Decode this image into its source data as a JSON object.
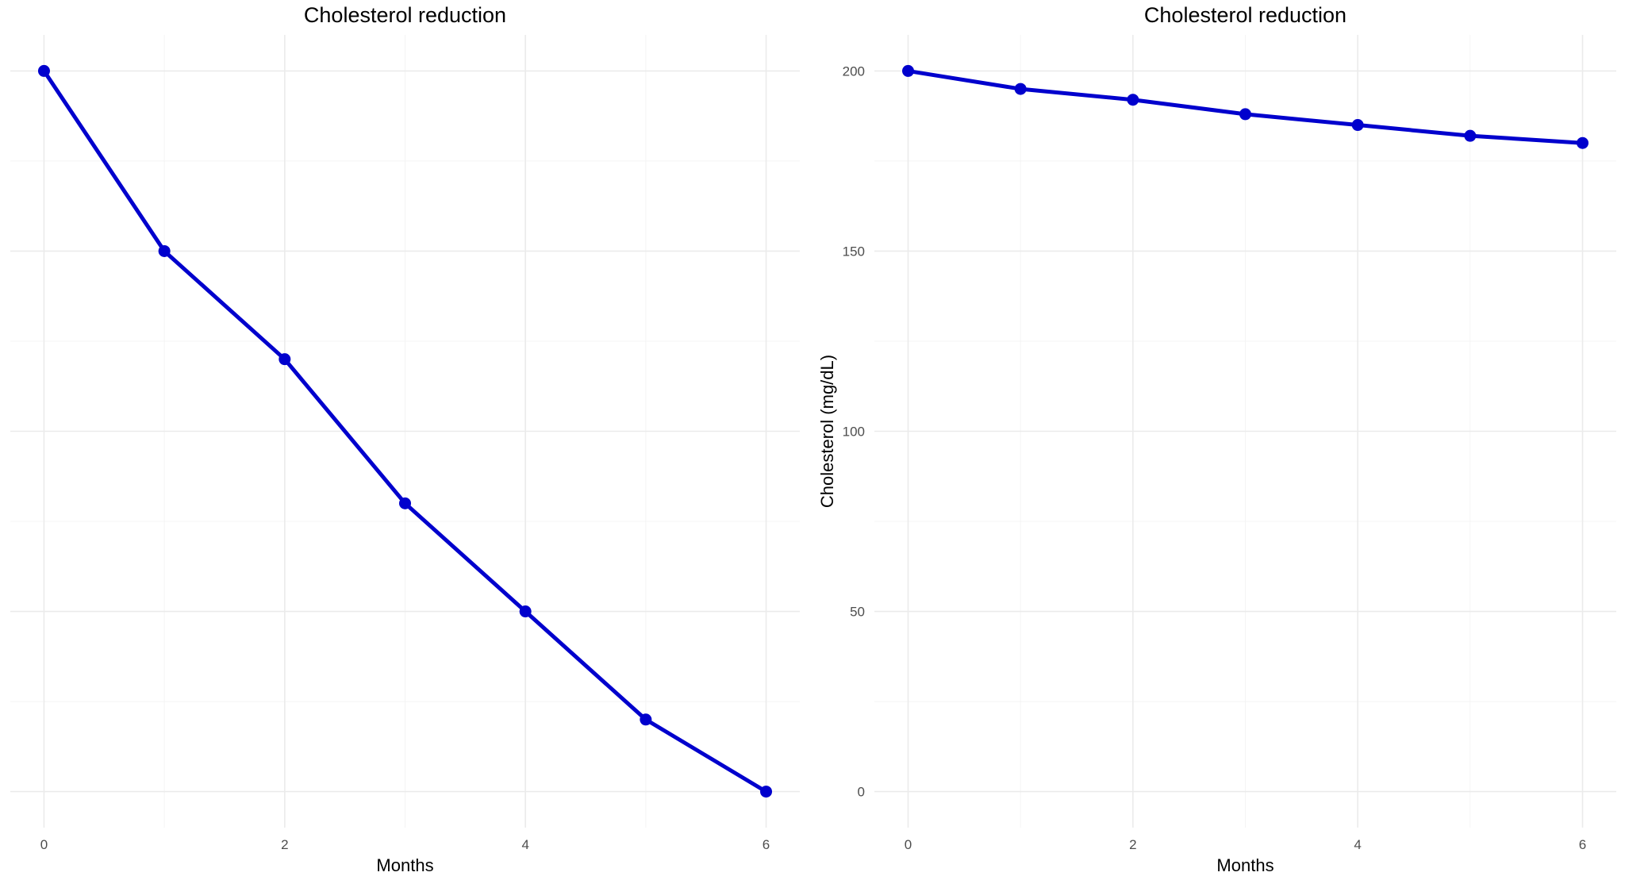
{
  "chart_data": [
    {
      "type": "line",
      "title": "Cholesterol reduction",
      "xlabel": "Months",
      "ylabel": "",
      "x": [
        0,
        1,
        2,
        3,
        4,
        5,
        6
      ],
      "series": [
        {
          "values": [
            200,
            150,
            120,
            80,
            50,
            20,
            0
          ],
          "color": "#0000cd"
        }
      ],
      "xlim": [
        -0.28,
        6.28
      ],
      "ylim": [
        -10,
        210
      ],
      "xticks": [
        0,
        2,
        4,
        6
      ],
      "xtick_labels": [
        "0",
        "2",
        "4",
        "6"
      ],
      "yticks": [
        0,
        50,
        100,
        150,
        200
      ],
      "ytick_labels": [],
      "grid": true
    },
    {
      "type": "line",
      "title": "Cholesterol reduction",
      "xlabel": "Months",
      "ylabel": "Cholesterol (mg/dL)",
      "x": [
        0,
        1,
        2,
        3,
        4,
        5,
        6
      ],
      "series": [
        {
          "values": [
            200,
            195,
            192,
            188,
            185,
            182,
            180
          ],
          "color": "#0000cd"
        }
      ],
      "xlim": [
        -0.3,
        6.3
      ],
      "ylim": [
        -10,
        210
      ],
      "xticks": [
        0,
        2,
        4,
        6
      ],
      "xtick_labels": [
        "0",
        "2",
        "4",
        "6"
      ],
      "yticks": [
        0,
        50,
        100,
        150,
        200
      ],
      "ytick_labels": [
        "0",
        "50",
        "100",
        "150",
        "200"
      ],
      "grid": true
    }
  ]
}
